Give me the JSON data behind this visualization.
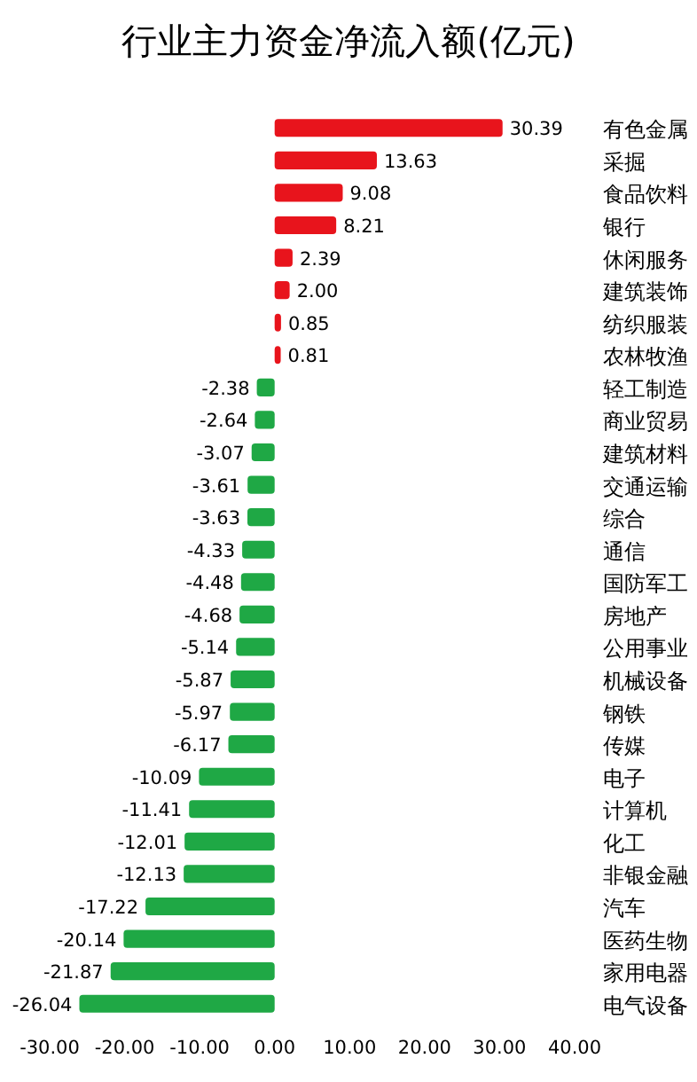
{
  "chart_data": {
    "type": "bar",
    "orientation": "horizontal",
    "title": "行业主力资金净流入额(亿元)",
    "categories": [
      "有色金属",
      "采掘",
      "食品饮料",
      "银行",
      "休闲服务",
      "建筑装饰",
      "纺织服装",
      "农林牧渔",
      "轻工制造",
      "商业贸易",
      "建筑材料",
      "交通运输",
      "综合",
      "通信",
      "国防军工",
      "房地产",
      "公用事业",
      "机械设备",
      "钢铁",
      "传媒",
      "电子",
      "计算机",
      "化工",
      "非银金融",
      "汽车",
      "医药生物",
      "家用电器",
      "电气设备"
    ],
    "values": [
      30.39,
      13.63,
      9.08,
      8.21,
      2.39,
      2.0,
      0.85,
      0.81,
      -2.38,
      -2.64,
      -3.07,
      -3.61,
      -3.63,
      -4.33,
      -4.48,
      -4.68,
      -5.14,
      -5.87,
      -5.97,
      -6.17,
      -10.09,
      -11.41,
      -12.01,
      -12.13,
      -17.22,
      -20.14,
      -21.87,
      -26.04
    ],
    "value_labels": [
      "30.39",
      "13.63",
      "9.08",
      "8.21",
      "2.39",
      "2.00",
      "0.85",
      "0.81",
      "-2.38",
      "-2.64",
      "-3.07",
      "-3.61",
      "-3.63",
      "-4.33",
      "-4.48",
      "-4.68",
      "-5.14",
      "-5.87",
      "-5.97",
      "-6.17",
      "-10.09",
      "-11.41",
      "-12.01",
      "-12.13",
      "-17.22",
      "-20.14",
      "-21.87",
      "-26.04"
    ],
    "colors": [
      "#e8141c",
      "#e8141c",
      "#e8141c",
      "#e8141c",
      "#e8141c",
      "#e8141c",
      "#e8141c",
      "#e8141c",
      "#1fa845",
      "#1fa845",
      "#1fa845",
      "#1fa845",
      "#1fa845",
      "#1fa845",
      "#1fa845",
      "#1fa845",
      "#1fa845",
      "#1fa845",
      "#1fa845",
      "#1fa845",
      "#1fa845",
      "#1fa845",
      "#1fa845",
      "#1fa845",
      "#1fa845",
      "#1fa845",
      "#1fa845",
      "#1fa845"
    ],
    "xlim": [
      -30,
      40
    ],
    "xticks": [
      {
        "value": -30,
        "label": "-30.00"
      },
      {
        "value": -20,
        "label": "-20.00"
      },
      {
        "value": -10,
        "label": "-10.00"
      },
      {
        "value": 0,
        "label": "0.00"
      },
      {
        "value": 10,
        "label": "10.00"
      },
      {
        "value": 20,
        "label": "20.00"
      },
      {
        "value": 30,
        "label": "30.00"
      },
      {
        "value": 40,
        "label": "40.00"
      }
    ],
    "grid": false
  }
}
